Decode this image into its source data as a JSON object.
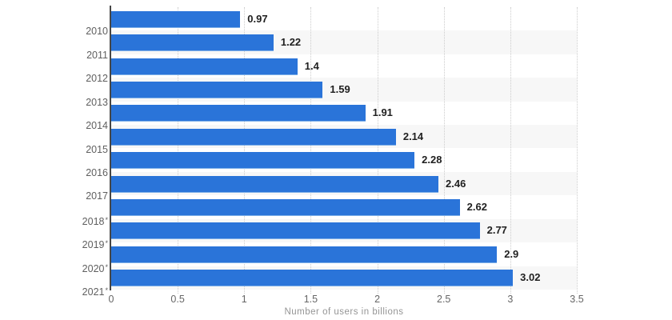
{
  "chart_data": {
    "type": "bar",
    "orientation": "horizontal",
    "title": "",
    "categories": [
      "2010",
      "2011",
      "2012",
      "2013",
      "2014",
      "2015",
      "2016",
      "2017",
      "2018*",
      "2019*",
      "2020*",
      "2021*"
    ],
    "values": [
      0.97,
      1.22,
      1.4,
      1.59,
      1.91,
      2.14,
      2.28,
      2.46,
      2.62,
      2.77,
      2.9,
      3.02
    ],
    "value_labels": [
      "0.97",
      "1.22",
      "1.4",
      "1.59",
      "1.91",
      "2.14",
      "2.28",
      "2.46",
      "2.62",
      "2.77",
      "2.9",
      "3.02"
    ],
    "xlabel": "Number of users in billions",
    "ylabel": "",
    "xlim": [
      0,
      3.5
    ],
    "x_tick_labels": [
      "0",
      "0.5",
      "1",
      "1.5",
      "2",
      "2.5",
      "3",
      "3.5"
    ],
    "x_tick_values": [
      0,
      0.5,
      1,
      1.5,
      2,
      2.5,
      3,
      3.5
    ],
    "grid": "vertical-dotted-at-half-units",
    "row_striping": "alternate-rows-shaded",
    "legend": "none"
  },
  "colors": {
    "bar": "#2a74d9",
    "value_label": "#1f1f1f",
    "axis_line": "#464646",
    "year_label": "#5f5f5f",
    "tick_label": "#666666",
    "axis_title": "#959595",
    "row_stripe": "#f7f7f7",
    "gridline": "#cccccc",
    "background": "#ffffff"
  }
}
